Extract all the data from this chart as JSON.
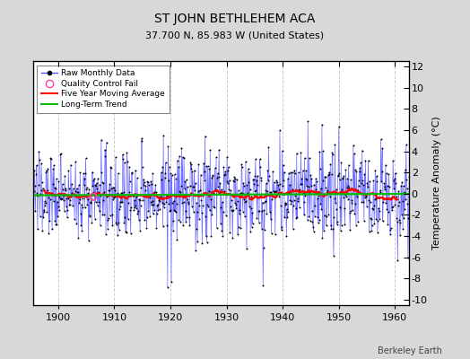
{
  "title": "ST JOHN BETHLEHEM ACA",
  "subtitle": "37.700 N, 85.983 W (United States)",
  "ylabel": "Temperature Anomaly (°C)",
  "watermark": "Berkeley Earth",
  "xlim": [
    1895.5,
    1962.5
  ],
  "ylim": [
    -10.5,
    12.5
  ],
  "yticks": [
    -10,
    -8,
    -6,
    -4,
    -2,
    0,
    2,
    4,
    6,
    8,
    10,
    12
  ],
  "xticks": [
    1900,
    1910,
    1920,
    1930,
    1940,
    1950,
    1960
  ],
  "start_year": 1895,
  "end_year": 1962,
  "months_per_year": 12,
  "bg_color": "#d8d8d8",
  "plot_bg_color": "#ffffff",
  "raw_line_color": "#5555ff",
  "raw_marker_color": "#000000",
  "moving_avg_color": "#ff0000",
  "trend_color": "#00bb00",
  "qc_fail_color": "#ff44aa",
  "seed": 137,
  "trend_slope": 0.002,
  "trend_intercept": -0.15,
  "moving_avg_window": 60,
  "noise_std": 2.0
}
